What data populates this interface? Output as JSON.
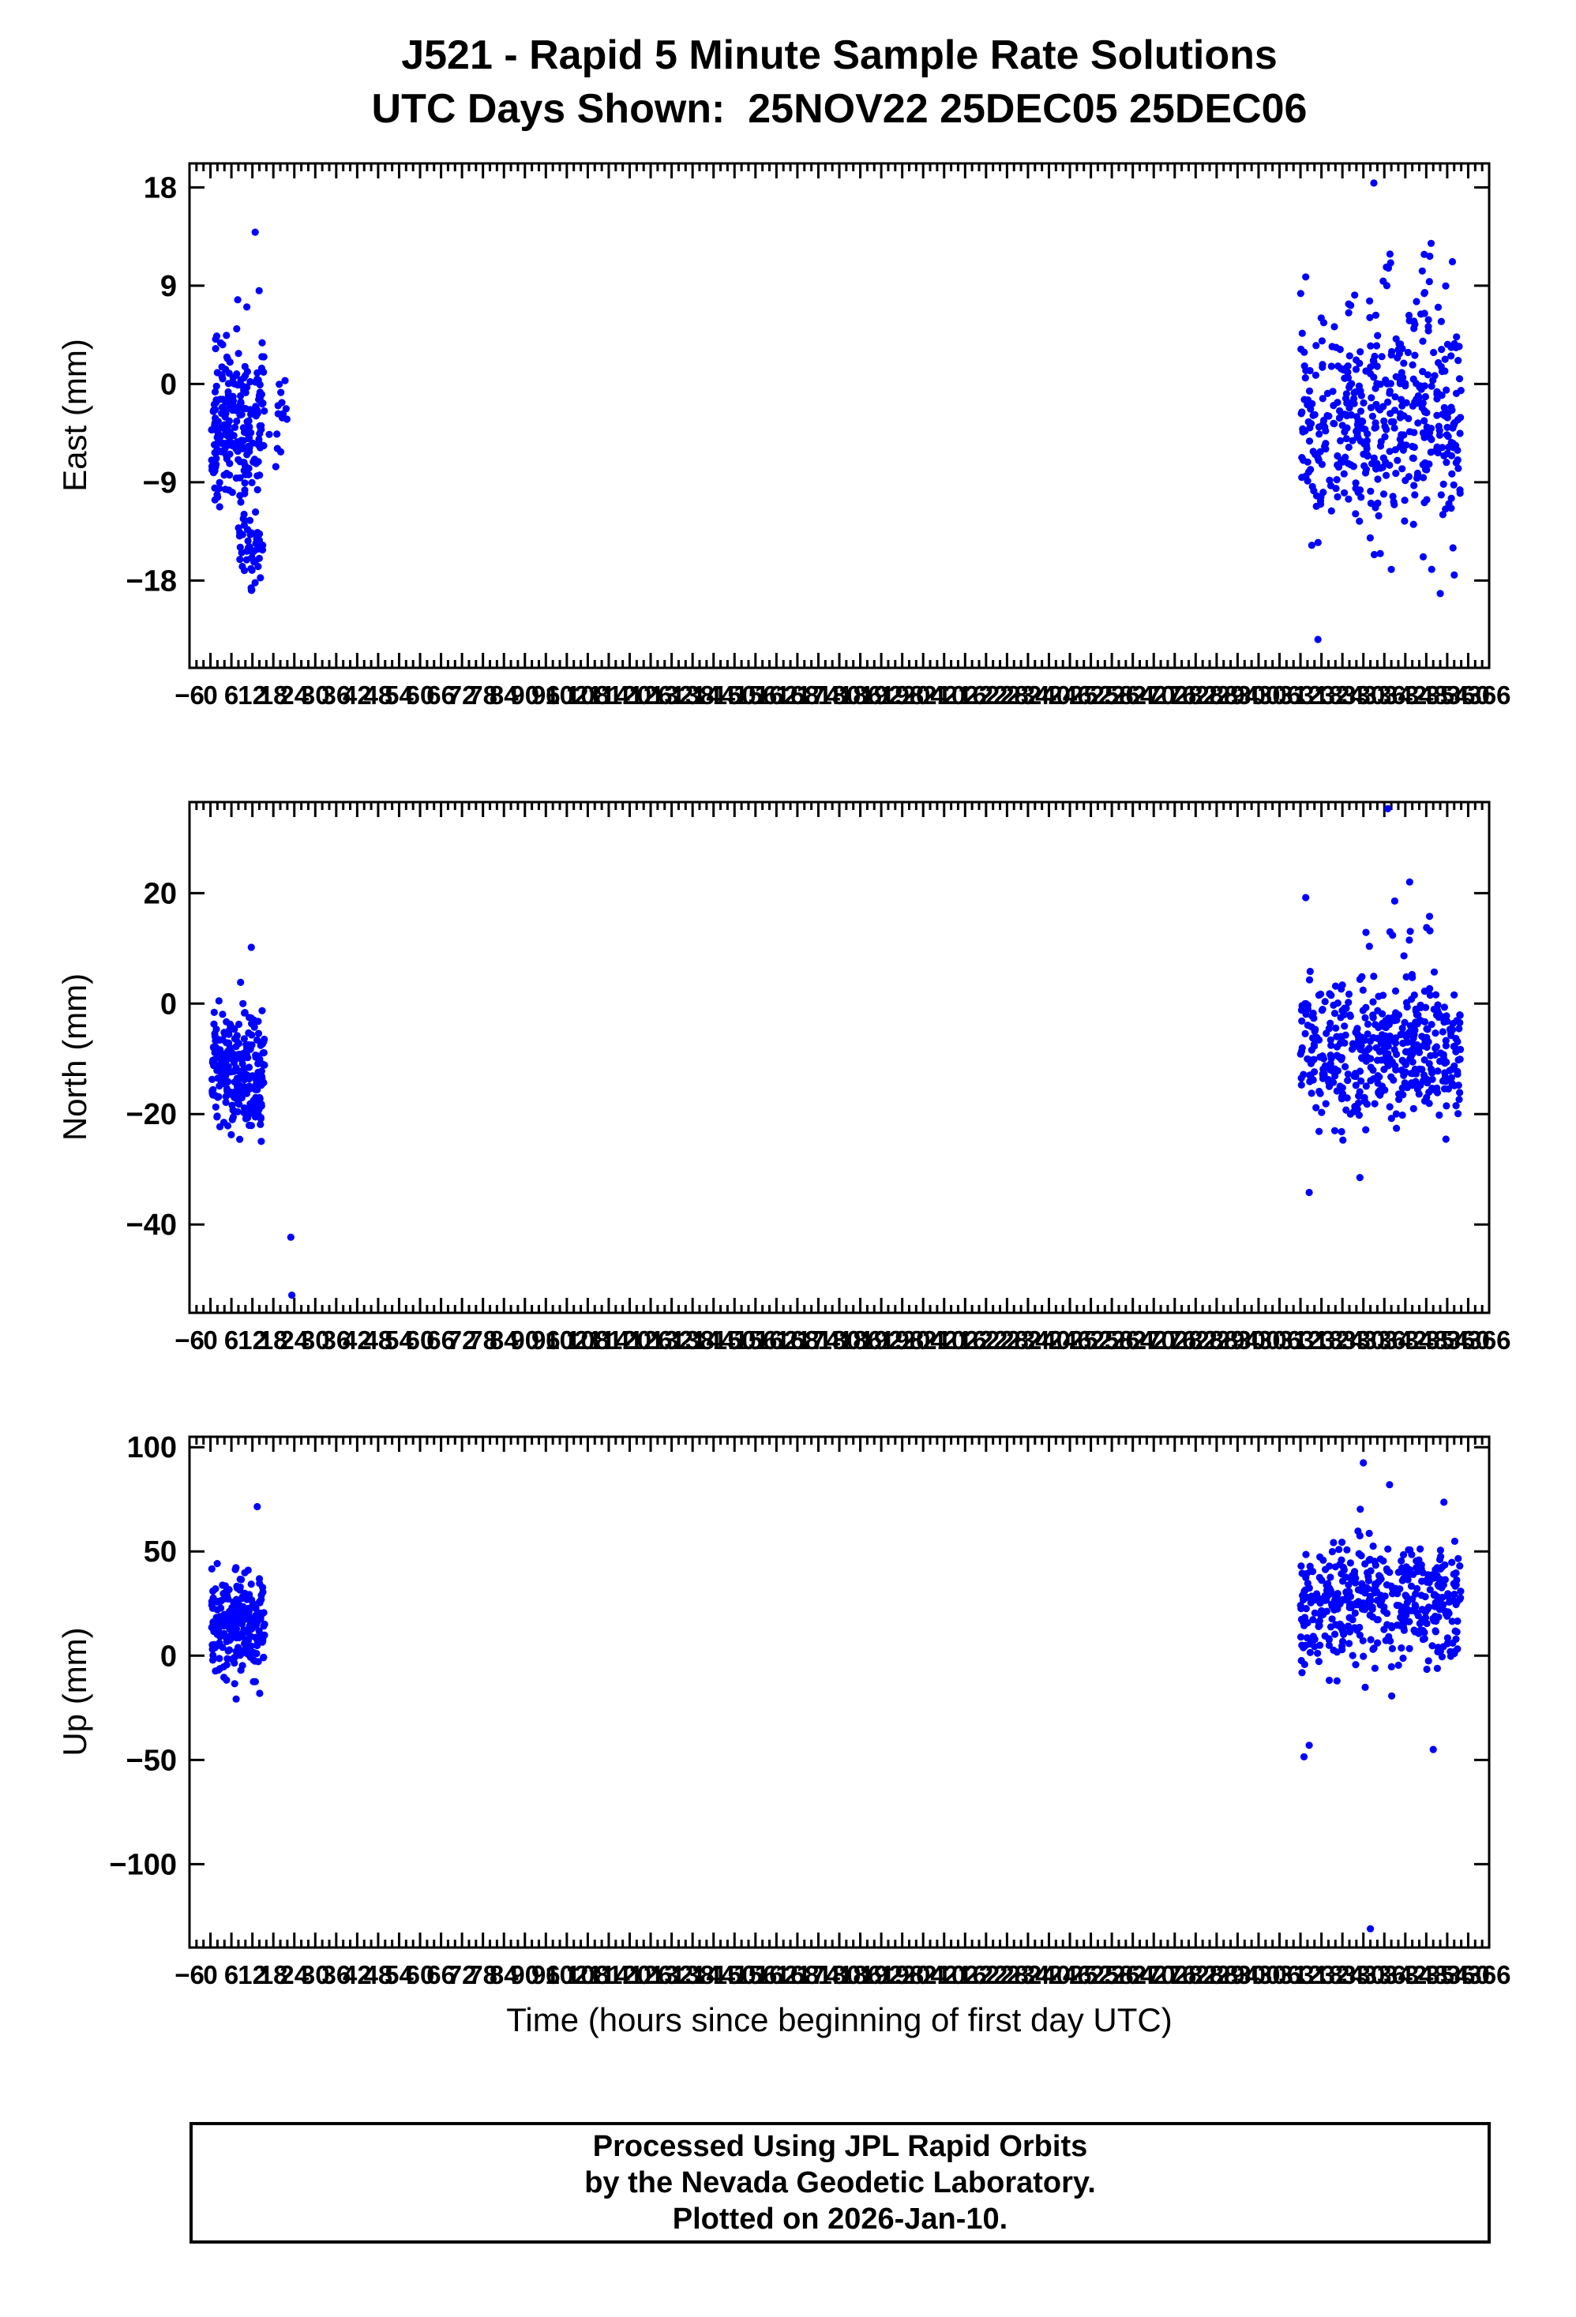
{
  "title": {
    "line1": "J521 - Rapid 5 Minute Sample Rate Solutions",
    "line2": "UTC Days Shown:  25NOV22 25DEC05 25DEC06"
  },
  "x_axis": {
    "label": "Time (hours since beginning of first day UTC)",
    "min": -6,
    "max": 366,
    "major_tick_step": 6,
    "minor_tick_step": 2
  },
  "style": {
    "point_color": "#0000ff",
    "axis_color": "#000000"
  },
  "footer": {
    "lines": [
      "Processed Using JPL Rapid Orbits",
      "by the Nevada Geodetic Laboratory.",
      "Plotted on 2026-Jan-10."
    ]
  },
  "chart_data": [
    {
      "type": "scatter",
      "name": "east",
      "ylabel": "East (mm)",
      "ylim": [
        -26,
        20.2
      ],
      "yticks": [
        18,
        9,
        0,
        -9,
        -18
      ],
      "x_day_ranges": [
        [
          0,
          24
        ],
        [
          312,
          336
        ],
        [
          336,
          360
        ]
      ],
      "legend": "none",
      "grid": false,
      "clusters": [
        {
          "n": 230,
          "x": [
            0.3,
            15.5
          ],
          "mean": -3.5,
          "sd": 3.8,
          "clip": [
            -11.5,
            9.4
          ]
        },
        {
          "n": 50,
          "x": [
            8.0,
            15.0
          ],
          "mean": -14.5,
          "sd": 2.2,
          "clip": [
            -19.5,
            -10.5
          ]
        },
        {
          "n": 15,
          "x": [
            15.5,
            22.0
          ],
          "mean": -4.0,
          "sd": 3.0,
          "clip": [
            -10.0,
            3.0
          ]
        },
        {
          "n": 430,
          "x": [
            312.0,
            358.0
          ],
          "mean": -4.0,
          "sd": 4.8,
          "clip": [
            -17.5,
            12.0
          ]
        },
        {
          "n": 25,
          "x": [
            330.0,
            352.0
          ],
          "mean": 8.0,
          "sd": 3.0,
          "clip": [
            2.0,
            15.5
          ]
        }
      ],
      "outliers": [
        [
          12.8,
          13.9
        ],
        [
          333,
          18.4
        ],
        [
          317,
          -23.4
        ],
        [
          352,
          -19.2
        ],
        [
          356,
          -17.5
        ],
        [
          349,
          11.7
        ],
        [
          355.5,
          11.2
        ],
        [
          313.5,
          9.8
        ]
      ]
    },
    {
      "type": "scatter",
      "name": "north",
      "ylabel": "North (mm)",
      "ylim": [
        -56,
        36.5
      ],
      "yticks": [
        20,
        0,
        -20,
        -40
      ],
      "x_day_ranges": [
        [
          0,
          24
        ],
        [
          312,
          336
        ],
        [
          336,
          360
        ]
      ],
      "legend": "none",
      "grid": false,
      "clusters": [
        {
          "n": 240,
          "x": [
            0.3,
            15.5
          ],
          "mean": -12.0,
          "sd": 5.5,
          "clip": [
            -28.0,
            4.5
          ]
        },
        {
          "n": 440,
          "x": [
            312.0,
            358.0
          ],
          "mean": -8.5,
          "sd": 6.0,
          "clip": [
            -26.0,
            9.5
          ]
        },
        {
          "n": 12,
          "x": [
            330.0,
            350.0
          ],
          "mean": 13.0,
          "sd": 4.0,
          "clip": [
            8.0,
            22.8
          ]
        }
      ],
      "outliers": [
        [
          11.7,
          10.2
        ],
        [
          23.0,
          -42.3
        ],
        [
          23.3,
          -52.8
        ],
        [
          337,
          35.3
        ],
        [
          313.5,
          19.2
        ],
        [
          314.5,
          -34.2
        ],
        [
          329,
          -31.5
        ]
      ]
    },
    {
      "type": "scatter",
      "name": "up",
      "ylabel": "Up (mm)",
      "ylim": [
        -140,
        105
      ],
      "yticks": [
        100,
        50,
        0,
        -50,
        -100
      ],
      "x_day_ranges": [
        [
          0,
          24
        ],
        [
          312,
          336
        ],
        [
          336,
          360
        ]
      ],
      "legend": "none",
      "grid": false,
      "clusters": [
        {
          "n": 240,
          "x": [
            0.3,
            15.5
          ],
          "mean": 15.0,
          "sd": 13.0,
          "clip": [
            -21.0,
            58.0
          ]
        },
        {
          "n": 440,
          "x": [
            312.0,
            358.0
          ],
          "mean": 25.0,
          "sd": 14.0,
          "clip": [
            -30.0,
            76.0
          ]
        }
      ],
      "outliers": [
        [
          13.4,
          71.5
        ],
        [
          330,
          92.5
        ],
        [
          337.5,
          82.0
        ],
        [
          313.0,
          -48.5
        ],
        [
          314.5,
          -43.0
        ],
        [
          350.0,
          -45.0
        ],
        [
          332.0,
          -131.0
        ]
      ]
    }
  ]
}
